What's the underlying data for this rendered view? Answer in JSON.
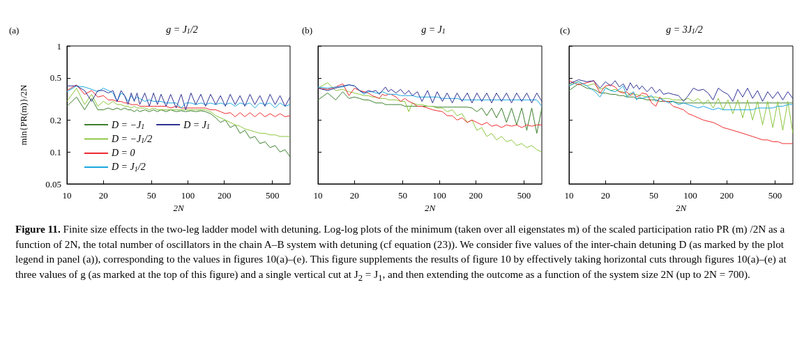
{
  "chart_data": [
    {
      "type": "line",
      "title": "g = J$_{1}$/2",
      "subtitle": "(a)",
      "xlabel": "2N",
      "ylabel": "min{PR(m)}/2N",
      "log": "xy",
      "grid": false,
      "legend": "bottom left",
      "marker": "none",
      "xlim": [
        10,
        700
      ],
      "ylim": [
        0.05,
        1
      ],
      "xticks": [
        10,
        20,
        50,
        100,
        200,
        500
      ],
      "yticks": [
        0.05,
        0.1,
        0.2,
        0.5,
        1
      ],
      "annotations": [
        "Figure 11.",
        " Finite size effects in the two-leg ladder model with detuning. Log-log plots of the minimum (taken over all eigenstates m) of the scaled participation ratio PR (m) /2N as a function of 2N, the total number of oscillators in the chain A–B system with detuning (cf equation (23)). We consider five values of the inter-chain detuning D (as marked by the plot legend in panel (a)), corresponding to the values in figures 10(a)–(e). This figure supplements the results of figure 10 by effectively taking horizontal cuts through figures 10(a)–(e) at three values of g (as marked at the top of this figure) and a single vertical cut at J$_{2}$ = J$_{1}$, and then extending the outcome as a function of the system size 2N (up to 2N = 700)."
      ],
      "x": [
        10,
        12,
        14,
        16,
        18,
        20,
        22,
        24,
        26,
        28,
        30,
        32,
        34,
        36,
        38,
        40,
        44,
        48,
        52,
        56,
        60,
        66,
        72,
        80,
        88,
        96,
        106,
        116,
        128,
        140,
        154,
        170,
        186,
        204,
        224,
        246,
        270,
        296,
        326,
        358,
        394,
        434,
        478,
        526,
        578,
        636,
        700
      ],
      "series": [
        {
          "name": "D = −J$_{1}$",
          "color": "#3b7f2d",
          "values": [
            0.27,
            0.33,
            0.25,
            0.32,
            0.25,
            0.25,
            0.26,
            0.25,
            0.26,
            0.25,
            0.26,
            0.25,
            0.25,
            0.24,
            0.25,
            0.24,
            0.25,
            0.24,
            0.25,
            0.24,
            0.25,
            0.24,
            0.25,
            0.24,
            0.245,
            0.24,
            0.245,
            0.24,
            0.245,
            0.24,
            0.23,
            0.21,
            0.19,
            0.2,
            0.17,
            0.18,
            0.15,
            0.16,
            0.135,
            0.14,
            0.12,
            0.125,
            0.11,
            0.115,
            0.1,
            0.105,
            0.09
          ]
        },
        {
          "name": "D = −J$_{1}$/2",
          "color": "#8cc63e",
          "values": [
            0.3,
            0.4,
            0.28,
            0.35,
            0.27,
            0.3,
            0.28,
            0.3,
            0.28,
            0.28,
            0.27,
            0.27,
            0.26,
            0.27,
            0.26,
            0.26,
            0.26,
            0.25,
            0.26,
            0.25,
            0.25,
            0.25,
            0.25,
            0.25,
            0.25,
            0.25,
            0.25,
            0.25,
            0.25,
            0.25,
            0.24,
            0.22,
            0.21,
            0.2,
            0.19,
            0.18,
            0.175,
            0.165,
            0.16,
            0.155,
            0.15,
            0.15,
            0.145,
            0.145,
            0.14,
            0.14,
            0.14
          ]
        },
        {
          "name": "D = 0",
          "color": "#ee2a2f",
          "values": [
            0.38,
            0.43,
            0.35,
            0.38,
            0.33,
            0.34,
            0.31,
            0.31,
            0.3,
            0.3,
            0.29,
            0.29,
            0.28,
            0.28,
            0.28,
            0.27,
            0.27,
            0.27,
            0.27,
            0.27,
            0.27,
            0.27,
            0.26,
            0.27,
            0.26,
            0.26,
            0.26,
            0.26,
            0.26,
            0.26,
            0.25,
            0.25,
            0.24,
            0.23,
            0.235,
            0.215,
            0.235,
            0.215,
            0.235,
            0.215,
            0.235,
            0.215,
            0.23,
            0.215,
            0.23,
            0.215,
            0.22
          ]
        },
        {
          "name": "D = J$_{1}$/2",
          "color": "#1aa7e1",
          "values": [
            0.37,
            0.42,
            0.41,
            0.39,
            0.37,
            0.4,
            0.38,
            0.36,
            0.3,
            0.36,
            0.34,
            0.3,
            0.34,
            0.31,
            0.33,
            0.32,
            0.3,
            0.31,
            0.3,
            0.3,
            0.3,
            0.29,
            0.29,
            0.29,
            0.26,
            0.29,
            0.29,
            0.28,
            0.29,
            0.28,
            0.29,
            0.28,
            0.29,
            0.28,
            0.29,
            0.27,
            0.29,
            0.28,
            0.29,
            0.26,
            0.29,
            0.28,
            0.29,
            0.26,
            0.29,
            0.27,
            0.28
          ]
        },
        {
          "name": "D = J$_{1}$",
          "color": "#2e3192",
          "values": [
            0.42,
            0.42,
            0.38,
            0.3,
            0.38,
            0.38,
            0.36,
            0.38,
            0.3,
            0.38,
            0.34,
            0.28,
            0.36,
            0.3,
            0.36,
            0.28,
            0.36,
            0.27,
            0.36,
            0.28,
            0.35,
            0.27,
            0.35,
            0.26,
            0.35,
            0.25,
            0.36,
            0.28,
            0.35,
            0.27,
            0.35,
            0.28,
            0.34,
            0.27,
            0.35,
            0.28,
            0.34,
            0.27,
            0.35,
            0.28,
            0.34,
            0.27,
            0.35,
            0.28,
            0.34,
            0.27,
            0.33
          ]
        }
      ]
    },
    {
      "type": "line",
      "title": "g = J$_{1}$",
      "subtitle": "(b)",
      "xlabel": "2N",
      "log": "xy",
      "grid": false,
      "marker": "none",
      "tick_labels": "x",
      "xlim": [
        10,
        700
      ],
      "ylim": [
        0.05,
        1
      ],
      "xticks": [
        10,
        20,
        50,
        100,
        200,
        500
      ],
      "yticks": [
        0.05,
        0.1,
        0.2,
        0.5,
        1
      ],
      "x": [
        10,
        12,
        14,
        16,
        18,
        20,
        22,
        24,
        26,
        28,
        30,
        32,
        34,
        36,
        38,
        40,
        44,
        48,
        52,
        56,
        60,
        66,
        72,
        80,
        88,
        96,
        106,
        116,
        128,
        140,
        154,
        170,
        186,
        204,
        224,
        246,
        270,
        296,
        326,
        358,
        394,
        434,
        478,
        526,
        578,
        636,
        700
      ],
      "series": [
        {
          "color": "#3b7f2d",
          "values": [
            0.31,
            0.36,
            0.31,
            0.37,
            0.32,
            0.33,
            0.32,
            0.31,
            0.31,
            0.3,
            0.29,
            0.29,
            0.29,
            0.28,
            0.28,
            0.28,
            0.28,
            0.28,
            0.27,
            0.27,
            0.27,
            0.27,
            0.27,
            0.27,
            0.27,
            0.265,
            0.265,
            0.265,
            0.265,
            0.265,
            0.265,
            0.265,
            0.26,
            0.24,
            0.26,
            0.22,
            0.26,
            0.21,
            0.26,
            0.19,
            0.26,
            0.18,
            0.26,
            0.16,
            0.26,
            0.15,
            0.26
          ]
        },
        {
          "color": "#8cc63e",
          "values": [
            0.4,
            0.45,
            0.38,
            0.39,
            0.37,
            0.36,
            0.35,
            0.34,
            0.34,
            0.33,
            0.33,
            0.32,
            0.32,
            0.32,
            0.31,
            0.31,
            0.31,
            0.3,
            0.3,
            0.24,
            0.29,
            0.28,
            0.28,
            0.27,
            0.27,
            0.26,
            0.26,
            0.24,
            0.25,
            0.22,
            0.23,
            0.19,
            0.2,
            0.16,
            0.17,
            0.14,
            0.15,
            0.13,
            0.14,
            0.125,
            0.13,
            0.115,
            0.12,
            0.11,
            0.115,
            0.105,
            0.1
          ]
        },
        {
          "color": "#ee2a2f",
          "values": [
            0.4,
            0.39,
            0.41,
            0.44,
            0.34,
            0.4,
            0.38,
            0.37,
            0.36,
            0.34,
            0.33,
            0.32,
            0.35,
            0.34,
            0.35,
            0.35,
            0.33,
            0.3,
            0.32,
            0.3,
            0.29,
            0.27,
            0.27,
            0.26,
            0.25,
            0.245,
            0.24,
            0.22,
            0.22,
            0.2,
            0.21,
            0.19,
            0.2,
            0.19,
            0.18,
            0.19,
            0.175,
            0.18,
            0.17,
            0.18,
            0.175,
            0.18,
            0.17,
            0.18,
            0.175,
            0.18,
            0.18
          ]
        },
        {
          "color": "#1aa7e1",
          "values": [
            0.41,
            0.4,
            0.41,
            0.41,
            0.43,
            0.42,
            0.38,
            0.35,
            0.37,
            0.37,
            0.36,
            0.36,
            0.37,
            0.36,
            0.35,
            0.35,
            0.35,
            0.34,
            0.34,
            0.34,
            0.34,
            0.33,
            0.33,
            0.33,
            0.33,
            0.33,
            0.32,
            0.32,
            0.32,
            0.32,
            0.31,
            0.31,
            0.31,
            0.31,
            0.31,
            0.31,
            0.31,
            0.31,
            0.31,
            0.31,
            0.31,
            0.31,
            0.31,
            0.31,
            0.31,
            0.31,
            0.27
          ]
        },
        {
          "color": "#2e3192",
          "values": [
            0.4,
            0.38,
            0.4,
            0.42,
            0.43,
            0.42,
            0.38,
            0.36,
            0.38,
            0.37,
            0.38,
            0.35,
            0.38,
            0.41,
            0.37,
            0.39,
            0.36,
            0.39,
            0.35,
            0.38,
            0.34,
            0.37,
            0.3,
            0.38,
            0.29,
            0.37,
            0.3,
            0.36,
            0.29,
            0.36,
            0.3,
            0.36,
            0.29,
            0.36,
            0.3,
            0.36,
            0.29,
            0.36,
            0.3,
            0.36,
            0.29,
            0.36,
            0.3,
            0.36,
            0.29,
            0.36,
            0.3
          ]
        }
      ]
    },
    {
      "type": "line",
      "title": "g = 3J$_{1}$/2",
      "subtitle": "(c)",
      "xlabel": "2N",
      "log": "xy",
      "grid": false,
      "marker": "none",
      "tick_labels": "x",
      "xlim": [
        10,
        700
      ],
      "ylim": [
        0.05,
        1
      ],
      "xticks": [
        10,
        20,
        50,
        100,
        200,
        500
      ],
      "yticks": [
        0.05,
        0.1,
        0.2,
        0.5,
        1
      ],
      "x": [
        10,
        12,
        14,
        16,
        18,
        20,
        22,
        24,
        26,
        28,
        30,
        32,
        34,
        36,
        38,
        40,
        44,
        48,
        52,
        56,
        60,
        66,
        72,
        80,
        88,
        96,
        106,
        116,
        128,
        140,
        154,
        170,
        186,
        204,
        224,
        246,
        270,
        296,
        326,
        358,
        394,
        434,
        478,
        526,
        578,
        636,
        700
      ],
      "series": [
        {
          "color": "#3b7f2d",
          "values": [
            0.38,
            0.44,
            0.4,
            0.39,
            0.36,
            0.36,
            0.35,
            0.35,
            0.34,
            0.34,
            0.33,
            0.33,
            0.33,
            0.32,
            0.32,
            0.32,
            0.31,
            0.31,
            0.31,
            0.3,
            0.3,
            0.3,
            0.3,
            0.29,
            0.29,
            0.29,
            0.29,
            0.29,
            0.29,
            0.29,
            0.29,
            0.29,
            0.29,
            0.29,
            0.29,
            0.29,
            0.29,
            0.29,
            0.29,
            0.29,
            0.29,
            0.29,
            0.29,
            0.29,
            0.29,
            0.29,
            0.29
          ]
        },
        {
          "color": "#8cc63e",
          "values": [
            0.43,
            0.46,
            0.42,
            0.44,
            0.39,
            0.41,
            0.38,
            0.39,
            0.37,
            0.37,
            0.34,
            0.36,
            0.35,
            0.35,
            0.34,
            0.34,
            0.33,
            0.33,
            0.33,
            0.32,
            0.32,
            0.32,
            0.31,
            0.31,
            0.31,
            0.32,
            0.3,
            0.32,
            0.28,
            0.31,
            0.26,
            0.32,
            0.25,
            0.31,
            0.23,
            0.31,
            0.21,
            0.31,
            0.2,
            0.3,
            0.18,
            0.3,
            0.17,
            0.3,
            0.16,
            0.3,
            0.15
          ]
        },
        {
          "color": "#ee2a2f",
          "values": [
            0.47,
            0.43,
            0.45,
            0.47,
            0.36,
            0.42,
            0.43,
            0.41,
            0.37,
            0.36,
            0.37,
            0.34,
            0.36,
            0.33,
            0.34,
            0.36,
            0.35,
            0.29,
            0.27,
            0.33,
            0.3,
            0.3,
            0.27,
            0.26,
            0.25,
            0.23,
            0.22,
            0.21,
            0.2,
            0.195,
            0.19,
            0.18,
            0.17,
            0.165,
            0.16,
            0.155,
            0.15,
            0.145,
            0.14,
            0.135,
            0.13,
            0.13,
            0.125,
            0.125,
            0.12,
            0.12,
            0.12
          ]
        },
        {
          "color": "#1aa7e1",
          "values": [
            0.42,
            0.46,
            0.42,
            0.38,
            0.33,
            0.4,
            0.38,
            0.37,
            0.39,
            0.42,
            0.33,
            0.35,
            0.37,
            0.31,
            0.33,
            0.32,
            0.33,
            0.34,
            0.3,
            0.32,
            0.31,
            0.29,
            0.3,
            0.28,
            0.29,
            0.28,
            0.27,
            0.26,
            0.27,
            0.26,
            0.25,
            0.26,
            0.25,
            0.25,
            0.25,
            0.25,
            0.25,
            0.25,
            0.25,
            0.26,
            0.26,
            0.26,
            0.26,
            0.27,
            0.27,
            0.28,
            0.28
          ]
        },
        {
          "color": "#2e3192",
          "values": [
            0.44,
            0.48,
            0.46,
            0.47,
            0.4,
            0.46,
            0.42,
            0.47,
            0.41,
            0.44,
            0.38,
            0.45,
            0.4,
            0.43,
            0.39,
            0.42,
            0.37,
            0.41,
            0.36,
            0.39,
            0.35,
            0.36,
            0.35,
            0.34,
            0.3,
            0.34,
            0.4,
            0.38,
            0.39,
            0.36,
            0.31,
            0.4,
            0.37,
            0.35,
            0.3,
            0.39,
            0.33,
            0.4,
            0.32,
            0.38,
            0.3,
            0.37,
            0.32,
            0.37,
            0.31,
            0.37,
            0.32
          ]
        }
      ]
    }
  ]
}
